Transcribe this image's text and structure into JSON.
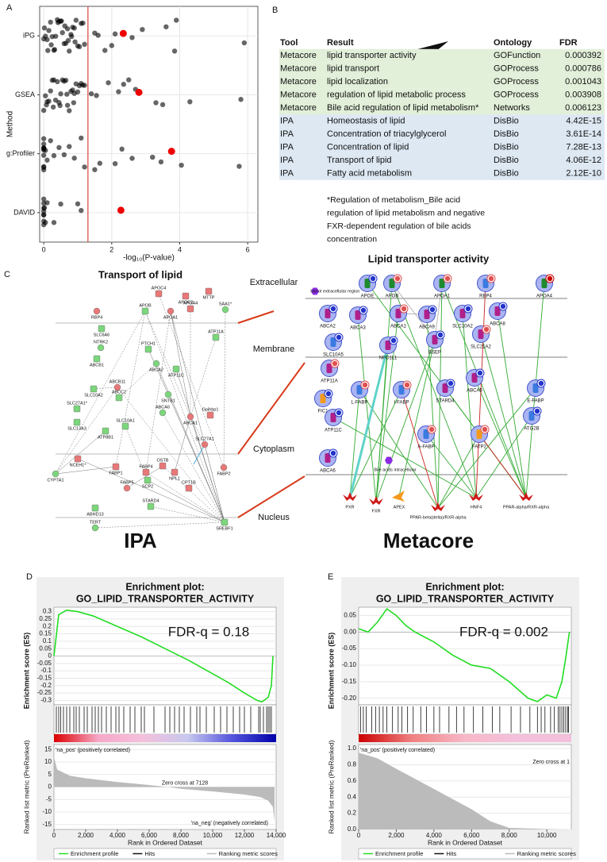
{
  "panels": [
    "A",
    "B",
    "C",
    "D",
    "E"
  ],
  "chart_data": [
    {
      "type": "strip",
      "x_label": "-log₁₀(P-value)",
      "y_label": "Method",
      "categories": [
        "iPG",
        "GSEA",
        "g:Profiler",
        "DAVID"
      ],
      "points": [
        [
          0,
          0.05,
          0.1,
          0.15,
          0.2,
          0.25,
          0.3,
          0.35,
          0.4,
          0.45,
          0.5,
          0.55,
          0.6,
          0.65,
          0.7,
          0.75,
          0.8,
          0.85,
          0.9,
          0.95,
          1.0,
          1.05,
          1.1,
          1.15,
          1.2,
          0.02,
          0.12,
          0.22,
          0.32,
          0.42,
          0.52,
          0.62,
          0.72,
          0.82,
          0.92,
          1.5,
          1.6,
          1.8,
          2.0,
          2.1,
          2.6,
          2.9,
          3.6,
          3.85,
          3.9,
          5.9
        ],
        [
          0,
          0.05,
          0.1,
          0.15,
          0.2,
          0.25,
          0.3,
          0.35,
          0.4,
          0.45,
          0.5,
          0.55,
          0.6,
          0.65,
          0.7,
          0.75,
          0.8,
          0.85,
          0.9,
          0.95,
          1.0,
          1.05,
          1.1,
          1.15,
          1.2,
          0.08,
          0.28,
          0.48,
          0.68,
          0.88,
          1.4,
          1.55,
          1.9,
          2.2,
          2.35,
          2.5,
          2.7,
          3.3,
          3.5,
          4.3,
          5.8
        ],
        [
          0,
          0,
          0,
          0,
          0,
          0,
          0,
          0,
          0,
          0,
          0.05,
          0.1,
          0.2,
          0.3,
          0.45,
          0.6,
          0.75,
          0.9,
          1.1,
          1.2,
          1.5,
          1.65,
          2.1,
          2.3,
          2.6,
          3.2,
          3.45,
          4.05,
          5.75
        ],
        [
          0,
          0,
          0,
          0,
          0,
          0,
          0,
          0,
          0.02,
          0.05,
          0.1,
          0.3,
          0.5,
          1.0,
          1.1
        ]
      ],
      "highlight": [
        2.34,
        2.8,
        3.76,
        2.27
      ],
      "threshold": 1.3,
      "point_color": "#000000",
      "highlight_color": "#ee0000",
      "threshold_color": "#d9534f",
      "xlim": [
        -0.12,
        6.3
      ],
      "xticks": [
        0,
        2,
        4,
        6
      ],
      "grid": true
    },
    {
      "type": "enrichment",
      "title": "Enrichment plot:",
      "subtitle": "GO_LIPID_TRANSPORTER_ACTIVITY",
      "annotation": "FDR-q = 0.18",
      "es_label": "Enrichment score (ES)",
      "metric_label": "Ranked list metric (PreRanked)",
      "x_label": "Rank in Ordered Dataset",
      "pos_label": "'na_pos' (positively correlated)",
      "neg_label": "'na_neg' (negatively correlated)",
      "zero_cross": "Zero cross at 7128",
      "legend": [
        "Enrichment profile",
        "Hits",
        "Ranking metric scores"
      ],
      "xlim": [
        0,
        14000
      ],
      "xticks": [
        0,
        {
          "value": 2000,
          "label": "2,000"
        },
        {
          "value": 4000,
          "label": "4,000"
        },
        {
          "value": 6000,
          "label": "6,000"
        },
        {
          "value": 8000,
          "label": "8,000"
        },
        {
          "value": 10000,
          "label": "10,000"
        },
        {
          "value": 12000,
          "label": "12,000"
        },
        {
          "value": 14000,
          "label": "14,000"
        }
      ],
      "es": {
        "color": "#22dd22",
        "ylim": [
          -0.33,
          0.33
        ],
        "yticks": [
          0.3,
          0.25,
          0.2,
          0.15,
          0.1,
          0.05,
          0,
          -0.05,
          -0.1,
          -0.15,
          -0.2,
          -0.25,
          -0.3
        ],
        "x": [
          0,
          300,
          800,
          1500,
          2500,
          4000,
          5500,
          7000,
          8500,
          10000,
          11000,
          12000,
          12800,
          13100,
          13500,
          13700,
          13800
        ],
        "values": [
          0,
          0.28,
          0.31,
          0.3,
          0.27,
          0.2,
          0.13,
          0.05,
          -0.03,
          -0.12,
          -0.18,
          -0.25,
          -0.3,
          -0.31,
          -0.28,
          -0.2,
          0
        ]
      },
      "hits": [
        150,
        300,
        420,
        600,
        800,
        1000,
        1250,
        1400,
        1600,
        1900,
        2100,
        2400,
        2600,
        2800,
        3000,
        3300,
        3600,
        3900,
        4100,
        4400,
        4800,
        5100,
        5500,
        5700,
        6300,
        7000,
        7300,
        7600,
        7900,
        8200,
        8600,
        9000,
        9200,
        9600,
        10100,
        10500,
        10900,
        11300,
        11700,
        12000,
        12400,
        12900,
        13000,
        13200,
        13400,
        13500,
        13600,
        13700
      ],
      "colorbar": [
        "#dd0000",
        "#f7a8c8",
        "#f4c0dc",
        "#c8c8f0",
        "#5555dd",
        "#0000aa"
      ],
      "metric": {
        "color": "#bbbbbb",
        "ylim": [
          -17,
          17
        ],
        "yticks": [
          15,
          10,
          5,
          0,
          -5,
          -10,
          -15
        ],
        "x": [
          0,
          200,
          1000,
          2000,
          4000,
          6000,
          7128,
          8000,
          10000,
          12000,
          13000,
          13500,
          13800,
          13900
        ],
        "values": [
          12,
          7,
          4.5,
          3.5,
          2,
          0.8,
          0,
          -0.7,
          -1.8,
          -3,
          -4,
          -5.5,
          -8,
          -14
        ]
      }
    },
    {
      "type": "enrichment",
      "title": "Enrichment plot:",
      "subtitle": "GO_LIPID_TRANSPORTER_ACTIVITY",
      "annotation": "FDR-q = 0.002",
      "es_label": "Enrichment score (ES)",
      "metric_label": "Ranked list metric (PreRanked)",
      "x_label": "Rank in Ordered Dataset",
      "pos_label": "'na_pos' (positively correlated)",
      "zero_cross": "Zero cross at 1",
      "legend": [
        "Enrichment profile",
        "Hits",
        "Ranking metric scores"
      ],
      "xlim": [
        0,
        11300
      ],
      "xticks": [
        0,
        {
          "value": 2000,
          "label": "2,000"
        },
        {
          "value": 4000,
          "label": "4,000"
        },
        {
          "value": 6000,
          "label": "6,000"
        },
        {
          "value": 8000,
          "label": "8,000"
        },
        {
          "value": 10000,
          "label": "10,000"
        }
      ],
      "es": {
        "color": "#22dd22",
        "ylim": [
          -0.22,
          0.075
        ],
        "yticks": [
          0.05,
          {
            "value": 0,
            "label": "0.00"
          },
          -0.05,
          {
            "value": -0.1,
            "label": "-0.10"
          },
          -0.15,
          {
            "value": -0.2,
            "label": "-0.20"
          }
        ],
        "x": [
          0,
          500,
          1000,
          1500,
          2000,
          2500,
          3000,
          4000,
          5000,
          6000,
          7000,
          8000,
          9000,
          9500,
          10000,
          10500,
          10800,
          11000,
          11200
        ],
        "values": [
          0.01,
          0.0,
          0.03,
          0.07,
          0.05,
          0.02,
          0.0,
          -0.03,
          -0.07,
          -0.1,
          -0.11,
          -0.15,
          -0.2,
          -0.21,
          -0.19,
          -0.2,
          -0.15,
          -0.08,
          0
        ]
      },
      "hits": [
        100,
        250,
        400,
        700,
        900,
        1100,
        1300,
        1500,
        1800,
        2100,
        2300,
        2600,
        2900,
        3300,
        3600,
        4000,
        4300,
        4800,
        5200,
        5600,
        6100,
        6600,
        7100,
        7500,
        8100,
        8600,
        9100,
        9500,
        9700,
        9900,
        10200,
        10400,
        10600,
        10700,
        10800,
        10900,
        11000,
        11100,
        11150
      ],
      "colorbar": [
        "#cc0000",
        "#f08080",
        "#f8b8c8",
        "#f4c0dc",
        "#f4c0dc"
      ],
      "metric": {
        "color": "#bbbbbb",
        "ylim": [
          0,
          1.05
        ],
        "yticks": [
          {
            "value": 1,
            "label": "1.0"
          },
          0.8,
          0.6,
          0.4,
          0.2,
          {
            "value": 0,
            "label": "0.0"
          }
        ],
        "x": [
          0,
          1000,
          2000,
          4000,
          6000,
          7000,
          8000,
          10000,
          11000
        ],
        "values": [
          0.95,
          0.88,
          0.75,
          0.5,
          0.25,
          0.1,
          0.02,
          0.005,
          0
        ]
      }
    }
  ],
  "table": {
    "header": [
      "Tool",
      "Result",
      "Ontology",
      "FDR"
    ],
    "rows": [
      [
        "Metacore",
        "lipid transporter activity",
        "GOFunction",
        "0.000392"
      ],
      [
        "Metacore",
        "lipid transport",
        "GOProcess",
        "0.000786"
      ],
      [
        "Metacore",
        "lipid localization",
        "GOProcess",
        "0.001043"
      ],
      [
        "Metacore",
        "regulation of lipid metabolic process",
        "GOProcess",
        "0.003908"
      ],
      [
        "Metacore",
        "Bile acid regulation of lipid metabolism*",
        "Networks",
        "0.006123"
      ],
      [
        "IPA",
        "Homeostasis of lipid",
        "DisBio",
        "4.42E-15"
      ],
      [
        "IPA",
        "Concentration of triacylglycerol",
        "DisBio",
        "3.61E-14"
      ],
      [
        "IPA",
        "Concentration of lipid",
        "DisBio",
        "7.28E-13"
      ],
      [
        "IPA",
        "Transport of lipid",
        "DisBio",
        "4.06E-12"
      ],
      [
        "IPA",
        "Fatty acid metabolism",
        "DisBio",
        "2.12E-10"
      ]
    ],
    "note_lines": [
      "*Regulation of metabolism_Bile acid",
      "regulation of lipid metabolism and negative",
      "FXR-dependent regulation of bile acids",
      "concentration"
    ]
  },
  "diagram": {
    "title_left": "Transport of lipid",
    "title_right": "Lipid transporter activity",
    "label_left": "IPA",
    "label_right": "Metacore",
    "layers": [
      "Extracellular",
      "Membrane",
      "Cytoplasm",
      "Nucleus"
    ],
    "ipa_nodes": [
      {
        "label": "RBP4",
        "color": "#e87878"
      },
      {
        "label": "APOC4",
        "color": "#e87878"
      },
      {
        "label": "MTTP",
        "color": "#e87878"
      },
      {
        "label": "SAA1*",
        "color": "#7cd67c"
      },
      {
        "label": "APOC2",
        "color": "#e87878"
      },
      {
        "label": "APOB",
        "color": "#7cd67c"
      },
      {
        "label": "APOA1",
        "color": "#e87878"
      },
      {
        "label": "APOA4",
        "color": "#e87878"
      },
      {
        "label": "SLC6A6",
        "color": "#7cd67c"
      },
      {
        "label": "NTRK2",
        "color": "#7cd67c"
      },
      {
        "label": "ABCB1",
        "color": "#7cd67c"
      },
      {
        "label": "PTCH1",
        "color": "#7cd67c"
      },
      {
        "label": "ABCA2",
        "color": "#7cd67c"
      },
      {
        "label": "ATP11A",
        "color": "#7cd67c"
      },
      {
        "label": "ATP11C",
        "color": "#7cd67c"
      },
      {
        "label": "ABCB11",
        "color": "#e87878"
      },
      {
        "label": "SLC10A2",
        "color": "#7cd67c"
      },
      {
        "label": "ABCC2",
        "color": "#7cd67c"
      },
      {
        "label": "SNTB1",
        "color": "#7cd67c"
      },
      {
        "label": "SLC27A1*",
        "color": "#7cd67c"
      },
      {
        "label": "SLC13A3",
        "color": "#7cd67c"
      },
      {
        "label": "ABCA6",
        "color": "#7cd67c"
      },
      {
        "label": "ATP8B1",
        "color": "#7cd67c"
      },
      {
        "label": "SLC10A1",
        "color": "#7cd67c"
      },
      {
        "label": "ABCA1",
        "color": "#e87878"
      },
      {
        "label": "Gpihbp1",
        "color": "#e87878"
      },
      {
        "label": "NCEH1*",
        "color": "#e87878"
      },
      {
        "label": "SLC27A1",
        "color": "#e87878"
      },
      {
        "label": "FABP1",
        "color": "#e87878"
      },
      {
        "label": "FABP4",
        "color": "#e87878"
      },
      {
        "label": "CYP7A1",
        "color": "#7cd67c"
      },
      {
        "label": "OSTB",
        "color": "#e87878"
      },
      {
        "label": "NPL1",
        "color": "#e87878"
      },
      {
        "label": "FABP5",
        "color": "#e87878"
      },
      {
        "label": "SCP2",
        "color": "#7cd67c"
      },
      {
        "label": "CPT1B",
        "color": "#e87878"
      },
      {
        "label": "FABP2",
        "color": "#e87878"
      },
      {
        "label": "STARD4",
        "color": "#7cd67c"
      },
      {
        "label": "ABHD13",
        "color": "#7cd67c"
      },
      {
        "label": "TERT",
        "color": "#7cd67c"
      },
      {
        "label": "SREBF1",
        "color": "#7cd67c"
      }
    ],
    "metacore_nodes": [
      {
        "label": "APOE",
        "shape": "circle",
        "color": "#1e8a2e",
        "badge": "#2233cc"
      },
      {
        "label": "APOB",
        "shape": "circle",
        "color": "#1e8a2e",
        "badge": "#e05050"
      },
      {
        "label": "APOA1",
        "shape": "circle",
        "color": "#1e8a2e",
        "badge": "#e05050"
      },
      {
        "label": "RBP4",
        "shape": "circle",
        "color": "#3a7be0",
        "badge": "#e05050"
      },
      {
        "label": "APOA4",
        "shape": "circle",
        "color": "#1e8a2e",
        "badge": "#cc0000"
      },
      {
        "label": "ABCA1",
        "shape": "circle",
        "color": "#b0208a",
        "badge": "#e05050"
      },
      {
        "label": "ABCA2",
        "shape": "circle",
        "color": "#b0208a",
        "badge": "#2233cc"
      },
      {
        "label": "ABCA3",
        "shape": "circle",
        "color": "#b0208a",
        "badge": "#2233cc"
      },
      {
        "label": "ABCA9",
        "shape": "circle",
        "color": "#b0208a",
        "badge": "#2233cc"
      },
      {
        "label": "SLC10A2",
        "shape": "circle",
        "color": "#b0208a",
        "badge": "#2233cc"
      },
      {
        "label": "ABCA8",
        "shape": "circle",
        "color": "#b0208a",
        "badge": "#2233cc"
      },
      {
        "label": "SLC10A5",
        "shape": "circle",
        "color": "#3a7be0",
        "badge": "#2233cc"
      },
      {
        "label": "NPC1L1",
        "shape": "circle",
        "color": "#b0208a",
        "badge": "#2233cc"
      },
      {
        "label": "BSEP",
        "shape": "circle",
        "color": "#b0208a",
        "badge": "#2233cc"
      },
      {
        "label": "SLC21A2",
        "shape": "circle",
        "color": "#b0208a",
        "badge": "#e05050"
      },
      {
        "label": "ATP11A",
        "shape": "circle",
        "color": "#b0208a",
        "badge": "#e05050"
      },
      {
        "label": "FIC1",
        "shape": "circle",
        "color": "#f39a1e",
        "badge": "#2233cc"
      },
      {
        "label": "L-FABP",
        "shape": "circle",
        "color": "#3a7be0",
        "badge": "#e05050"
      },
      {
        "label": "I-FABP",
        "shape": "circle",
        "color": "#3a7be0",
        "badge": "#e05050"
      },
      {
        "label": "STARD4",
        "shape": "circle",
        "color": "#b0208a",
        "badge": "#2233cc"
      },
      {
        "label": "ABCA5",
        "shape": "circle",
        "color": "#b0208a",
        "badge": "#2233cc"
      },
      {
        "label": "E-FABP",
        "shape": "circle",
        "color": "#3a7be0",
        "badge": "#2233cc"
      },
      {
        "label": "ATP11C",
        "shape": "circle",
        "color": "#b0208a",
        "badge": "#2233cc"
      },
      {
        "label": "A-FABP",
        "shape": "circle",
        "color": "#3a7be0",
        "badge": "#e05050"
      },
      {
        "label": "FATP2",
        "shape": "circle",
        "color": "#f39a1e",
        "badge": "#e05050"
      },
      {
        "label": "ATG2B",
        "shape": "circle",
        "color": "#3a7be0",
        "badge": "#2233cc"
      },
      {
        "label": "ABCA6",
        "shape": "circle",
        "color": "#b0208a",
        "badge": "#2233cc"
      },
      {
        "label": "PXR",
        "shape": "star",
        "color": "#d01818"
      },
      {
        "label": "FXR",
        "shape": "star",
        "color": "#d01818"
      },
      {
        "label": "APEX",
        "shape": "wedge",
        "color": "#f39a1e"
      },
      {
        "label": "PPAR-beta(delta)/RXR-alpha",
        "shape": "star",
        "color": "#d01818"
      },
      {
        "label": "HNF4",
        "shape": "star",
        "color": "#d01818"
      },
      {
        "label": "PPAR-alpha/RXR-alpha",
        "shape": "star",
        "color": "#d01818"
      },
      {
        "label": "Bile acids intracellular",
        "shape": "hexagon",
        "color": "#8a2be2"
      },
      {
        "label": "Sterol extracellular region",
        "shape": "hexagon",
        "color": "#8a2be2"
      }
    ]
  }
}
